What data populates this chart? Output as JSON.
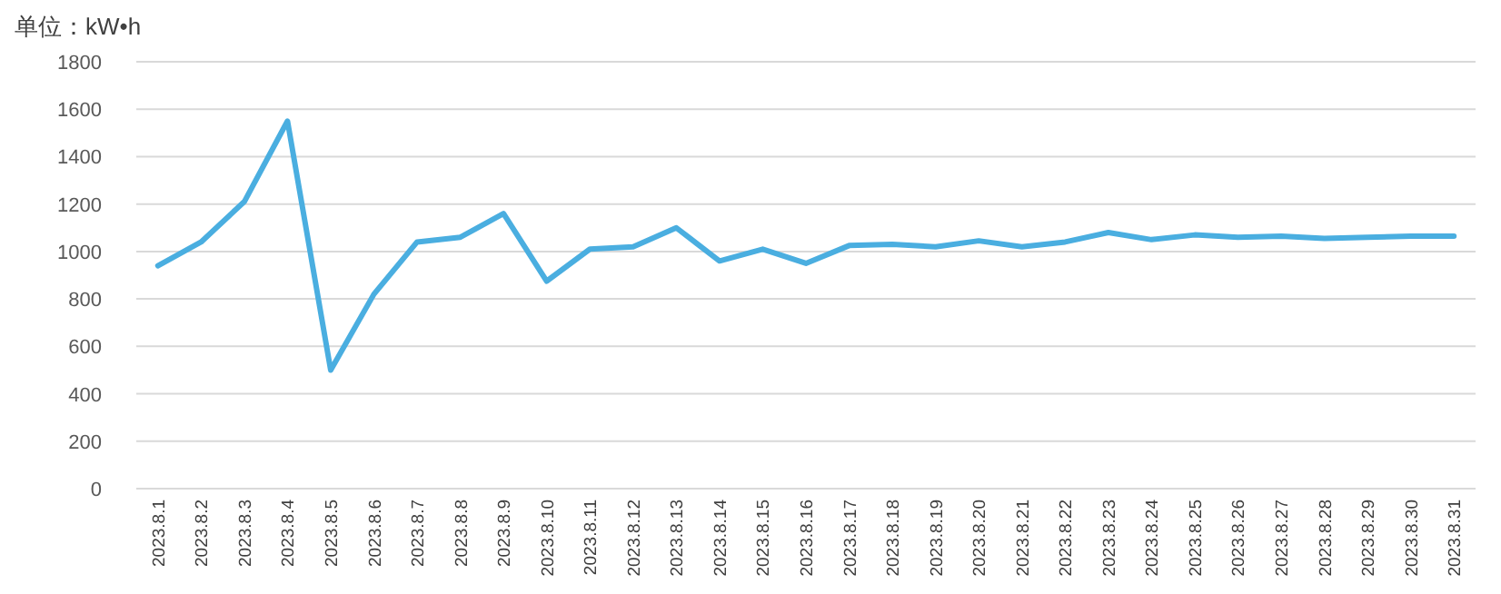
{
  "chart_data": {
    "type": "line",
    "ylabel": "单位：kW•h",
    "categories": [
      "2023.8.1",
      "2023.8.2",
      "2023.8.3",
      "2023.8.4",
      "2023.8.5",
      "2023.8.6",
      "2023.8.7",
      "2023.8.8",
      "2023.8.9",
      "2023.8.10",
      "2023.8.11",
      "2023.8.12",
      "2023.8.13",
      "2023.8.14",
      "2023.8.15",
      "2023.8.16",
      "2023.8.17",
      "2023.8.18",
      "2023.8.19",
      "2023.8.20",
      "2023.8.21",
      "2023.8.22",
      "2023.8.23",
      "2023.8.24",
      "2023.8.25",
      "2023.8.26",
      "2023.8.27",
      "2023.8.28",
      "2023.8.29",
      "2023.8.30",
      "2023.8.31"
    ],
    "series": [
      {
        "color": "#4aaee0",
        "values": [
          940,
          1040,
          1210,
          1550,
          500,
          820,
          1040,
          1060,
          1160,
          875,
          1010,
          1020,
          1100,
          960,
          1010,
          950,
          1025,
          1030,
          1020,
          1045,
          1020,
          1040,
          1080,
          1050,
          1070,
          1060,
          1065,
          1055,
          1060,
          1065,
          1065
        ]
      }
    ],
    "ylim": [
      0,
      1800
    ],
    "yticks": [
      0,
      200,
      400,
      600,
      800,
      1000,
      1200,
      1400,
      1600,
      1800
    ],
    "grid": "y",
    "marker": "none",
    "line_style": "solid"
  }
}
